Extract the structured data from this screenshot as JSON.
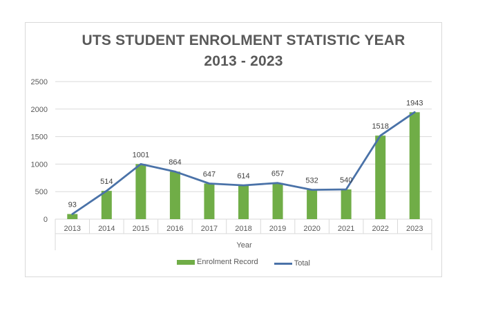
{
  "chart_data": {
    "type": "bar",
    "title": "UTS STUDENT ENROLMENT STATISTIC YEAR",
    "subtitle": "2013 - 2023",
    "xlabel": "Year",
    "ylabel": "",
    "categories": [
      "2013",
      "2014",
      "2015",
      "2016",
      "2017",
      "2018",
      "2019",
      "2020",
      "2021",
      "2022",
      "2023"
    ],
    "series": [
      {
        "name": "Enrolment Record",
        "type": "bar",
        "color": "#70ad47",
        "values": [
          93,
          514,
          1001,
          864,
          647,
          614,
          657,
          532,
          540,
          1518,
          1943
        ]
      },
      {
        "name": "Total",
        "type": "line",
        "color": "#4a72a8",
        "values": [
          93,
          514,
          1001,
          864,
          647,
          614,
          657,
          532,
          540,
          1518,
          1943
        ]
      }
    ],
    "data_labels": [
      "93",
      "514",
      "1001",
      "864",
      "647",
      "614",
      "657",
      "532",
      "540",
      "1518",
      "1943"
    ],
    "ylim": [
      0,
      2500
    ],
    "yticks": [
      0,
      500,
      1000,
      1500,
      2000,
      2500
    ],
    "grid": true,
    "legend": "bottom"
  }
}
